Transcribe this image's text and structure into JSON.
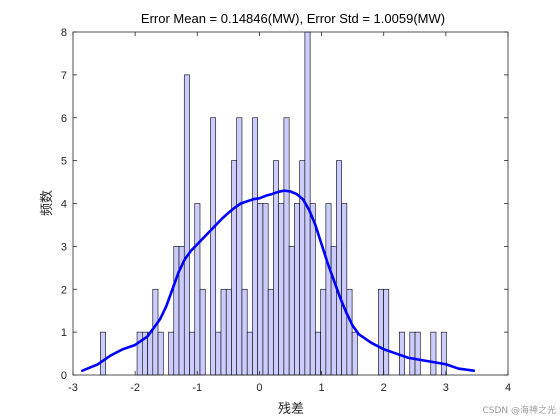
{
  "chart_data": {
    "type": "bar",
    "title": "Error Mean = 0.14846(MW), Error Std = 1.0059(MW)",
    "xlabel": "残差",
    "ylabel": "频数",
    "xlim": [
      -3,
      4
    ],
    "ylim": [
      0,
      8
    ],
    "xticks": [
      -3,
      -2,
      -1,
      0,
      1,
      2,
      3,
      4
    ],
    "yticks": [
      0,
      1,
      2,
      3,
      4,
      5,
      6,
      7,
      8
    ],
    "grid": false,
    "legend": "none",
    "histogram": {
      "bin_start": -2.56,
      "bin_width": 0.0844,
      "counts": [
        1,
        0,
        0,
        0,
        0,
        0,
        0,
        1,
        1,
        1,
        2,
        1,
        0,
        1,
        3,
        3,
        7,
        1,
        4,
        2,
        0,
        6,
        1,
        2,
        2,
        5,
        6,
        2,
        1,
        6,
        4,
        4,
        2,
        5,
        4,
        6,
        3,
        4,
        5,
        8,
        4,
        1,
        2,
        4,
        3,
        5,
        4,
        2,
        1,
        0,
        0,
        0,
        0,
        2,
        2,
        0,
        0,
        1,
        0,
        1,
        1,
        0,
        0,
        1,
        0,
        1
      ]
    },
    "density_curve": {
      "x": [
        -2.85,
        -2.6,
        -2.4,
        -2.2,
        -2.0,
        -1.8,
        -1.6,
        -1.5,
        -1.4,
        -1.3,
        -1.2,
        -1.1,
        -1.0,
        -0.9,
        -0.8,
        -0.7,
        -0.6,
        -0.5,
        -0.4,
        -0.3,
        -0.2,
        -0.1,
        0.0,
        0.1,
        0.2,
        0.3,
        0.4,
        0.5,
        0.6,
        0.7,
        0.8,
        0.9,
        1.0,
        1.1,
        1.2,
        1.3,
        1.4,
        1.5,
        1.6,
        1.8,
        2.0,
        2.2,
        2.4,
        2.6,
        2.8,
        3.0,
        3.2,
        3.45
      ],
      "y": [
        0.1,
        0.25,
        0.45,
        0.6,
        0.7,
        0.9,
        1.3,
        1.6,
        2.0,
        2.4,
        2.7,
        2.9,
        3.05,
        3.2,
        3.35,
        3.5,
        3.65,
        3.78,
        3.9,
        4.0,
        4.05,
        4.1,
        4.12,
        4.18,
        4.22,
        4.27,
        4.3,
        4.28,
        4.22,
        4.1,
        3.85,
        3.5,
        3.05,
        2.6,
        2.2,
        1.8,
        1.45,
        1.15,
        0.95,
        0.75,
        0.6,
        0.5,
        0.4,
        0.35,
        0.3,
        0.25,
        0.15,
        0.1
      ]
    },
    "colors": {
      "bar_fill": "#ccccff",
      "bar_edge": "#000000",
      "curve": "#0000ff",
      "axis": "#262626"
    }
  },
  "watermark": "CSDN @海神之光"
}
